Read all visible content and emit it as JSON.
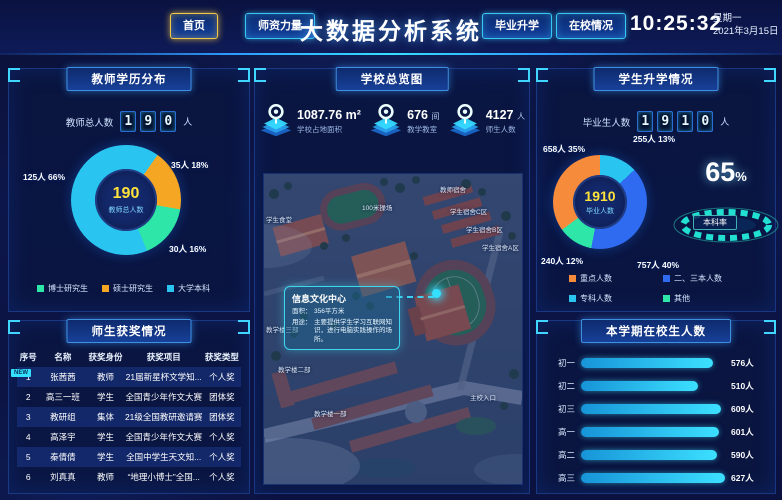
{
  "header": {
    "title": "大数据分析系统",
    "nav": [
      {
        "label": "首页",
        "active": true
      },
      {
        "label": "师资力量",
        "active": false
      },
      {
        "label": "毕业升学",
        "active": false
      },
      {
        "label": "在校情况",
        "active": false
      }
    ],
    "clock": {
      "time": "10:25:32",
      "weekday": "星期一",
      "date": "2021年3月15日"
    }
  },
  "left_top": {
    "title": "教师学历分布",
    "counter": {
      "label": "教师总人数",
      "digits": [
        "1",
        "9",
        "0"
      ],
      "unit": "人"
    }
  },
  "left_bottom": {
    "title": "师生获奖情况",
    "badge": "NEW",
    "columns": [
      "序号",
      "名称",
      "获奖身份",
      "获奖项目",
      "获奖类型"
    ],
    "rows": [
      {
        "no": "1",
        "name": "张茜茜",
        "identity": "教师",
        "project": "21届新星杯文学知...",
        "type": "个人奖"
      },
      {
        "no": "2",
        "name": "高三一班",
        "identity": "学生",
        "project": "全国青少年作文大赛",
        "type": "团体奖"
      },
      {
        "no": "3",
        "name": "教研组",
        "identity": "集体",
        "project": "21级全国教研邀请赛",
        "type": "团体奖"
      },
      {
        "no": "4",
        "name": "高泽宇",
        "identity": "学生",
        "project": "全国青少年作文大赛",
        "type": "个人奖"
      },
      {
        "no": "5",
        "name": "秦倩倩",
        "identity": "学生",
        "project": "全国中学生天文知...",
        "type": "个人奖"
      },
      {
        "no": "6",
        "name": "刘真真",
        "identity": "教师",
        "project": "“地理小博士”全国...",
        "type": "个人奖"
      }
    ]
  },
  "center": {
    "title": "学校总览图",
    "stats": [
      {
        "value": "1087.76 m²",
        "unit": "",
        "label": "学校占地面积"
      },
      {
        "value": "676",
        "unit": "间",
        "label": "教学教室"
      },
      {
        "value": "4127",
        "unit": "人",
        "label": "师生人数"
      }
    ],
    "map": {
      "labels": [
        "教师宿舍",
        "学生宿舍C区",
        "学生宿舍B区",
        "学生宿舍A区",
        "100米操场",
        "学生食堂",
        "教学楼三部",
        "教学楼二部",
        "教学楼一部",
        "主校入口"
      ],
      "tooltip": {
        "title": "信息文化中心",
        "area_label": "面积：",
        "area": "356平方米",
        "use_label": "用途：",
        "use": "主要提供学生学习互联网知识，进行电脑实践操作的场所。"
      }
    }
  },
  "right_top": {
    "title": "学生升学情况",
    "counter": {
      "label": "毕业生人数",
      "digits": [
        "1",
        "9",
        "1",
        "0"
      ],
      "unit": "人"
    },
    "center_label": "毕业人数",
    "rate": {
      "value": "65",
      "percent": "%",
      "label": "本科率"
    }
  },
  "right_bottom": {
    "title": "本学期在校生人数"
  },
  "chart_data": [
    {
      "type": "pie",
      "title": "教师学历分布",
      "total": 190,
      "total_label": "教师总人数",
      "series": [
        {
          "name": "硕士研究生",
          "value": 35,
          "pct": 18,
          "color": "#f5a623",
          "callout": "35人  18%"
        },
        {
          "name": "博士研究生",
          "value": 30,
          "pct": 16,
          "color": "#2ee6a8",
          "callout": "30人  16%"
        },
        {
          "name": "大学本科",
          "value": 125,
          "pct": 66,
          "color": "#29c4f0",
          "callout": "125人  66%"
        }
      ]
    },
    {
      "type": "pie",
      "title": "学生升学情况",
      "total": 1910,
      "total_label": "毕业人数",
      "series": [
        {
          "name": "专科人数",
          "value": 255,
          "pct": 13,
          "color": "#29c4f0",
          "callout": "255人  13%"
        },
        {
          "name": "二、三本人数",
          "value": 757,
          "pct": 40,
          "color": "#2f6bf0",
          "callout": "757人  40%"
        },
        {
          "name": "其他",
          "value": 240,
          "pct": 12,
          "color": "#2ee6a8",
          "callout": "240人  12%"
        },
        {
          "name": "重点人数",
          "value": 658,
          "pct": 35,
          "color": "#f78b3c",
          "callout": "658人  35%"
        }
      ],
      "extra": {
        "label": "本科率",
        "value": "65%"
      }
    },
    {
      "type": "bar",
      "title": "本学期在校生人数",
      "categories": [
        "初一",
        "初二",
        "初三",
        "高一",
        "高二",
        "高三"
      ],
      "values": [
        576,
        510,
        609,
        601,
        590,
        627
      ],
      "labels": [
        "576人",
        "510人",
        "609人",
        "601人",
        "590人",
        "627人"
      ],
      "pct_of_max": [
        91.9,
        81.3,
        97.1,
        95.9,
        94.1,
        100
      ],
      "unit": "人"
    }
  ]
}
